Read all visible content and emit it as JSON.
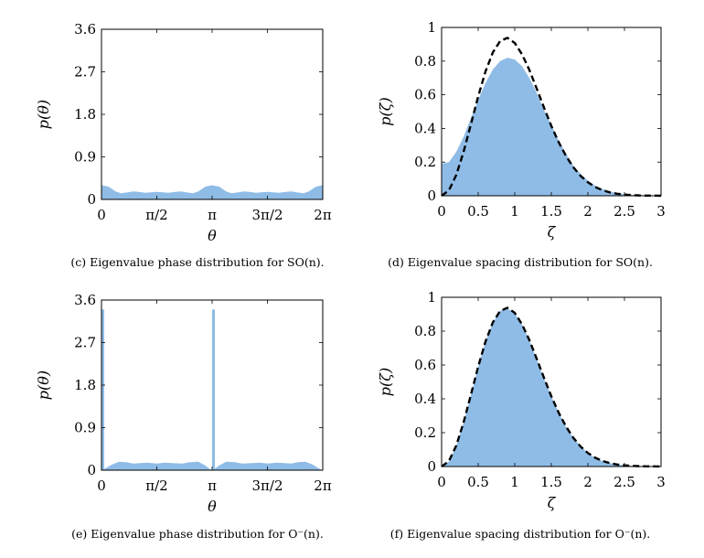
{
  "chart_data": [
    {
      "id": "c",
      "type": "area",
      "caption": "(c) Eigenvalue phase distribution for SO(n).",
      "xlabel": "θ",
      "ylabel": "p(θ)",
      "xlim": [
        0,
        6.2832
      ],
      "ylim": [
        0,
        3.6
      ],
      "xticks": [
        0,
        1.5708,
        3.1416,
        4.7124,
        6.2832
      ],
      "xtick_labels": [
        "0",
        "π/2",
        "π",
        "3π/2",
        "2π"
      ],
      "yticks": [
        0,
        0.9,
        1.8,
        2.7,
        3.6
      ],
      "ytick_labels": [
        "0",
        "0.9",
        "1.8",
        "2.7",
        "3.6"
      ],
      "fill_color": "#8fbce6",
      "series": [
        {
          "x": [
            0,
            0.2,
            0.4,
            0.55,
            0.75,
            0.9,
            1.05,
            1.25,
            1.4,
            1.57,
            1.75,
            1.9,
            2.1,
            2.25,
            2.4,
            2.6,
            2.75,
            2.95,
            3.14,
            3.34,
            3.54,
            3.69,
            3.89,
            4.04,
            4.19,
            4.39,
            4.54,
            4.71,
            4.89,
            5.04,
            5.24,
            5.39,
            5.54,
            5.74,
            5.89,
            6.09,
            6.28
          ],
          "y": [
            0.3,
            0.27,
            0.17,
            0.13,
            0.15,
            0.17,
            0.16,
            0.14,
            0.15,
            0.16,
            0.15,
            0.14,
            0.16,
            0.17,
            0.15,
            0.13,
            0.17,
            0.27,
            0.3,
            0.27,
            0.17,
            0.13,
            0.15,
            0.17,
            0.16,
            0.14,
            0.15,
            0.16,
            0.15,
            0.14,
            0.16,
            0.17,
            0.15,
            0.13,
            0.17,
            0.27,
            0.3
          ]
        }
      ]
    },
    {
      "id": "d",
      "type": "area",
      "caption": "(d) Eigenvalue spacing distribution for SO(n).",
      "xlabel": "ζ",
      "ylabel": "p(ζ)",
      "xlim": [
        0,
        3
      ],
      "ylim": [
        0,
        1
      ],
      "xticks": [
        0,
        0.5,
        1,
        1.5,
        2,
        2.5,
        3
      ],
      "xtick_labels": [
        "0",
        "0.5",
        "1",
        "1.5",
        "2",
        "2.5",
        "3"
      ],
      "yticks": [
        0,
        0.2,
        0.4,
        0.6,
        0.8,
        1
      ],
      "ytick_labels": [
        "0",
        "0.2",
        "0.4",
        "0.6",
        "0.8",
        "1"
      ],
      "fill_color": "#8fbce6",
      "series": [
        {
          "x": [
            0,
            0.1,
            0.2,
            0.3,
            0.4,
            0.5,
            0.6,
            0.7,
            0.8,
            0.9,
            1.0,
            1.1,
            1.2,
            1.3,
            1.4,
            1.5,
            1.6,
            1.7,
            1.8,
            1.9,
            2.0,
            2.1,
            2.2,
            2.3,
            2.4,
            2.5,
            2.6,
            2.7,
            2.8,
            2.9,
            3.0
          ],
          "y": [
            0.19,
            0.2,
            0.26,
            0.35,
            0.46,
            0.57,
            0.67,
            0.75,
            0.8,
            0.82,
            0.81,
            0.77,
            0.7,
            0.61,
            0.51,
            0.42,
            0.33,
            0.25,
            0.18,
            0.13,
            0.09,
            0.06,
            0.04,
            0.025,
            0.015,
            0.01,
            0.006,
            0.004,
            0.002,
            0.001,
            0
          ]
        }
      ],
      "reference_curve": {
        "style": "dashed",
        "color": "#000000",
        "x": [
          0,
          0.1,
          0.2,
          0.3,
          0.4,
          0.5,
          0.6,
          0.7,
          0.8,
          0.9,
          1.0,
          1.1,
          1.2,
          1.3,
          1.4,
          1.5,
          1.6,
          1.7,
          1.8,
          1.9,
          2.0,
          2.1,
          2.2,
          2.3,
          2.4,
          2.5,
          2.6,
          2.7,
          2.8,
          2.9,
          3.0
        ],
        "y": [
          0,
          0.032,
          0.123,
          0.26,
          0.423,
          0.59,
          0.738,
          0.851,
          0.919,
          0.938,
          0.908,
          0.84,
          0.747,
          0.637,
          0.524,
          0.415,
          0.319,
          0.237,
          0.17,
          0.118,
          0.08,
          0.052,
          0.033,
          0.02,
          0.012,
          0.007,
          0.004,
          0.002,
          0.001,
          0.001,
          0
        ]
      }
    },
    {
      "id": "e",
      "type": "area",
      "caption": "(e) Eigenvalue phase distribution for O⁻(n).",
      "xlabel": "θ",
      "ylabel": "p(θ)",
      "xlim": [
        0,
        6.2832
      ],
      "ylim": [
        0,
        3.6
      ],
      "xticks": [
        0,
        1.5708,
        3.1416,
        4.7124,
        6.2832
      ],
      "xtick_labels": [
        "0",
        "π/2",
        "π",
        "3π/2",
        "2π"
      ],
      "yticks": [
        0,
        0.9,
        1.8,
        2.7,
        3.6
      ],
      "ytick_labels": [
        "0",
        "0.9",
        "1.8",
        "2.7",
        "3.6"
      ],
      "fill_color": "#8fbce6",
      "spikes": [
        {
          "x": 0,
          "y": 3.4
        },
        {
          "x": 3.1416,
          "y": 3.4
        }
      ],
      "series": [
        {
          "x": [
            0.02,
            0.3,
            0.5,
            0.7,
            0.9,
            1.1,
            1.3,
            1.57,
            1.8,
            2.0,
            2.3,
            2.5,
            2.75,
            2.95,
            3.12,
            3.16,
            3.34,
            3.54,
            3.79,
            3.99,
            4.29,
            4.49,
            4.71,
            4.99,
            5.19,
            5.39,
            5.59,
            5.79,
            5.99,
            6.26
          ],
          "y": [
            0,
            0.12,
            0.18,
            0.17,
            0.14,
            0.15,
            0.16,
            0.14,
            0.16,
            0.15,
            0.14,
            0.17,
            0.18,
            0.1,
            0,
            0,
            0.1,
            0.18,
            0.17,
            0.14,
            0.15,
            0.16,
            0.14,
            0.16,
            0.15,
            0.14,
            0.17,
            0.18,
            0.12,
            0
          ]
        }
      ]
    },
    {
      "id": "f",
      "type": "area",
      "caption": "(f) Eigenvalue spacing distribution for O⁻(n).",
      "xlabel": "ζ",
      "ylabel": "p(ζ)",
      "xlim": [
        0,
        3
      ],
      "ylim": [
        0,
        1
      ],
      "xticks": [
        0,
        0.5,
        1,
        1.5,
        2,
        2.5,
        3
      ],
      "xtick_labels": [
        "0",
        "0.5",
        "1",
        "1.5",
        "2",
        "2.5",
        "3"
      ],
      "yticks": [
        0,
        0.2,
        0.4,
        0.6,
        0.8,
        1
      ],
      "ytick_labels": [
        "0",
        "0.2",
        "0.4",
        "0.6",
        "0.8",
        "1"
      ],
      "fill_color": "#8fbce6",
      "series": [
        {
          "x": [
            0,
            0.1,
            0.2,
            0.3,
            0.4,
            0.5,
            0.6,
            0.7,
            0.8,
            0.9,
            1.0,
            1.1,
            1.2,
            1.3,
            1.4,
            1.5,
            1.6,
            1.7,
            1.8,
            1.9,
            2.0,
            2.1,
            2.2,
            2.3,
            2.4,
            2.5,
            2.6,
            2.7,
            2.8,
            2.9,
            3.0
          ],
          "y": [
            0,
            0.03,
            0.12,
            0.26,
            0.42,
            0.59,
            0.74,
            0.85,
            0.92,
            0.935,
            0.905,
            0.84,
            0.745,
            0.635,
            0.52,
            0.415,
            0.32,
            0.235,
            0.17,
            0.12,
            0.08,
            0.052,
            0.033,
            0.02,
            0.012,
            0.007,
            0.004,
            0.002,
            0.001,
            0.001,
            0
          ]
        }
      ],
      "reference_curve": {
        "style": "dashed",
        "color": "#000000",
        "x": [
          0,
          0.1,
          0.2,
          0.3,
          0.4,
          0.5,
          0.6,
          0.7,
          0.8,
          0.9,
          1.0,
          1.1,
          1.2,
          1.3,
          1.4,
          1.5,
          1.6,
          1.7,
          1.8,
          1.9,
          2.0,
          2.1,
          2.2,
          2.3,
          2.4,
          2.5,
          2.6,
          2.7,
          2.8,
          2.9,
          3.0
        ],
        "y": [
          0,
          0.032,
          0.123,
          0.26,
          0.423,
          0.59,
          0.738,
          0.851,
          0.919,
          0.938,
          0.908,
          0.84,
          0.747,
          0.637,
          0.524,
          0.415,
          0.319,
          0.237,
          0.17,
          0.118,
          0.08,
          0.052,
          0.033,
          0.02,
          0.012,
          0.007,
          0.004,
          0.002,
          0.001,
          0.001,
          0
        ]
      }
    }
  ]
}
